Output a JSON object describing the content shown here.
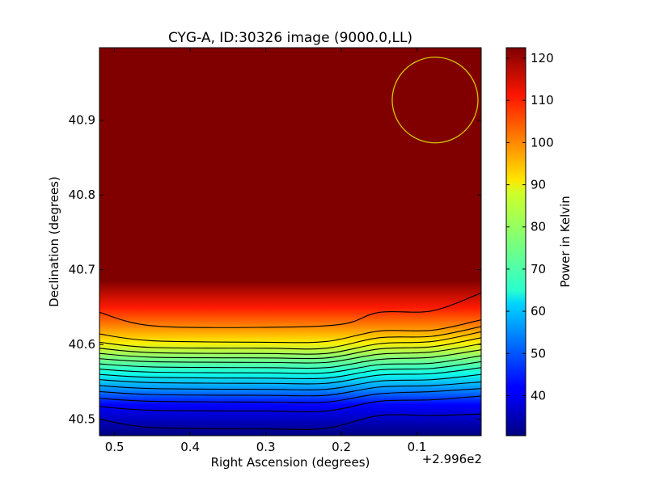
{
  "chart_data": {
    "type": "heatmap",
    "title": "CYG-A, ID:30326 image (9000.0,LL)",
    "xlabel": "Right Ascension (degrees)",
    "ylabel": "Declination (degrees)",
    "x_offset_label": "+2.996e2",
    "xlim": [
      0.52,
      0.015
    ],
    "ylim": [
      40.478,
      40.997
    ],
    "x_ticks": [
      {
        "value": 0.5,
        "label": "0.5"
      },
      {
        "value": 0.4,
        "label": "0.4"
      },
      {
        "value": 0.3,
        "label": "0.3"
      },
      {
        "value": 0.2,
        "label": "0.2"
      },
      {
        "value": 0.1,
        "label": "0.1"
      }
    ],
    "y_ticks": [
      {
        "value": 40.5,
        "label": "40.5"
      },
      {
        "value": 40.6,
        "label": "40.6"
      },
      {
        "value": 40.7,
        "label": "40.7"
      },
      {
        "value": 40.8,
        "label": "40.8"
      },
      {
        "value": 40.9,
        "label": "40.9"
      }
    ],
    "colorbar": {
      "label": "Power in Kelvin",
      "range": [
        30.5,
        122.5
      ],
      "colormap": "jet",
      "ticks": [
        {
          "value": 40,
          "label": "40"
        },
        {
          "value": 50,
          "label": "50"
        },
        {
          "value": 60,
          "label": "60"
        },
        {
          "value": 70,
          "label": "70"
        },
        {
          "value": 80,
          "label": "80"
        },
        {
          "value": 90,
          "label": "90"
        },
        {
          "value": 100,
          "label": "100"
        },
        {
          "value": 110,
          "label": "110"
        },
        {
          "value": 120,
          "label": "120"
        }
      ]
    },
    "contours": [
      {
        "level": 1,
        "color": "#000000",
        "points": [
          [
            0.52,
            40.643
          ],
          [
            0.45,
            40.625
          ],
          [
            0.3,
            40.623
          ],
          [
            0.2,
            40.627
          ],
          [
            0.15,
            40.643
          ],
          [
            0.08,
            40.645
          ],
          [
            0.015,
            40.669
          ]
        ]
      },
      {
        "level": 2,
        "color": "#000000",
        "points": [
          [
            0.52,
            40.614
          ],
          [
            0.45,
            40.605
          ],
          [
            0.3,
            40.603
          ],
          [
            0.22,
            40.604
          ],
          [
            0.15,
            40.618
          ],
          [
            0.08,
            40.619
          ],
          [
            0.015,
            40.633
          ]
        ]
      },
      {
        "level": 3,
        "color": "#000000",
        "points": [
          [
            0.52,
            40.603
          ],
          [
            0.45,
            40.596
          ],
          [
            0.3,
            40.595
          ],
          [
            0.22,
            40.595
          ],
          [
            0.15,
            40.609
          ],
          [
            0.08,
            40.611
          ],
          [
            0.015,
            40.624
          ]
        ]
      },
      {
        "level": 4,
        "color": "#000000",
        "points": [
          [
            0.52,
            40.595
          ],
          [
            0.45,
            40.589
          ],
          [
            0.3,
            40.588
          ],
          [
            0.22,
            40.588
          ],
          [
            0.15,
            40.601
          ],
          [
            0.08,
            40.604
          ],
          [
            0.015,
            40.617
          ]
        ]
      },
      {
        "level": 5,
        "color": "#000000",
        "points": [
          [
            0.52,
            40.588
          ],
          [
            0.45,
            40.583
          ],
          [
            0.3,
            40.582
          ],
          [
            0.22,
            40.582
          ],
          [
            0.15,
            40.594
          ],
          [
            0.08,
            40.597
          ],
          [
            0.015,
            40.609
          ]
        ]
      },
      {
        "level": 6,
        "color": "#000000",
        "points": [
          [
            0.52,
            40.581
          ],
          [
            0.45,
            40.577
          ],
          [
            0.3,
            40.576
          ],
          [
            0.22,
            40.576
          ],
          [
            0.15,
            40.587
          ],
          [
            0.08,
            40.59
          ],
          [
            0.015,
            40.601
          ]
        ]
      },
      {
        "level": 7,
        "color": "#000000",
        "points": [
          [
            0.52,
            40.574
          ],
          [
            0.45,
            40.57
          ],
          [
            0.3,
            40.569
          ],
          [
            0.22,
            40.569
          ],
          [
            0.15,
            40.58
          ],
          [
            0.08,
            40.583
          ],
          [
            0.015,
            40.593
          ]
        ]
      },
      {
        "level": 8,
        "color": "#000000",
        "points": [
          [
            0.52,
            40.567
          ],
          [
            0.45,
            40.563
          ],
          [
            0.3,
            40.562
          ],
          [
            0.22,
            40.562
          ],
          [
            0.15,
            40.573
          ],
          [
            0.08,
            40.575
          ],
          [
            0.015,
            40.585
          ]
        ]
      },
      {
        "level": 9,
        "color": "#000000",
        "points": [
          [
            0.52,
            40.56
          ],
          [
            0.45,
            40.556
          ],
          [
            0.3,
            40.555
          ],
          [
            0.22,
            40.555
          ],
          [
            0.15,
            40.566
          ],
          [
            0.08,
            40.568
          ],
          [
            0.015,
            40.577
          ]
        ]
      },
      {
        "level": 10,
        "color": "#000000",
        "points": [
          [
            0.52,
            40.553
          ],
          [
            0.45,
            40.549
          ],
          [
            0.3,
            40.548
          ],
          [
            0.22,
            40.548
          ],
          [
            0.15,
            40.559
          ],
          [
            0.08,
            40.561
          ],
          [
            0.015,
            40.569
          ]
        ]
      },
      {
        "level": 11,
        "color": "#000000",
        "points": [
          [
            0.52,
            40.545
          ],
          [
            0.45,
            40.541
          ],
          [
            0.3,
            40.54
          ],
          [
            0.22,
            40.54
          ],
          [
            0.15,
            40.551
          ],
          [
            0.08,
            40.553
          ],
          [
            0.015,
            40.56
          ]
        ]
      },
      {
        "level": 12,
        "color": "#000000",
        "points": [
          [
            0.52,
            40.537
          ],
          [
            0.45,
            40.533
          ],
          [
            0.3,
            40.532
          ],
          [
            0.22,
            40.532
          ],
          [
            0.15,
            40.543
          ],
          [
            0.08,
            40.545
          ],
          [
            0.015,
            40.55
          ]
        ]
      },
      {
        "level": 13,
        "color": "#000000",
        "points": [
          [
            0.52,
            40.528
          ],
          [
            0.45,
            40.524
          ],
          [
            0.3,
            40.523
          ],
          [
            0.22,
            40.523
          ],
          [
            0.15,
            40.534
          ],
          [
            0.08,
            40.537
          ],
          [
            0.015,
            40.541
          ]
        ]
      },
      {
        "level": 14,
        "color": "#000000",
        "points": [
          [
            0.52,
            40.517
          ],
          [
            0.45,
            40.512
          ],
          [
            0.3,
            40.511
          ],
          [
            0.22,
            40.511
          ],
          [
            0.15,
            40.524
          ],
          [
            0.08,
            40.526
          ],
          [
            0.015,
            40.531
          ]
        ]
      },
      {
        "level": 15,
        "color": "#000000",
        "points": [
          [
            0.52,
            40.5
          ],
          [
            0.45,
            40.489
          ],
          [
            0.3,
            40.487
          ],
          [
            0.22,
            40.488
          ],
          [
            0.15,
            40.505
          ],
          [
            0.08,
            40.505
          ],
          [
            0.015,
            40.507
          ]
        ]
      }
    ],
    "beam_circle": {
      "center_ra": 0.076,
      "center_dec": 40.927,
      "color": "#d4c400"
    },
    "colors": {
      "background": "#ffffff",
      "frame": "#000000"
    }
  }
}
